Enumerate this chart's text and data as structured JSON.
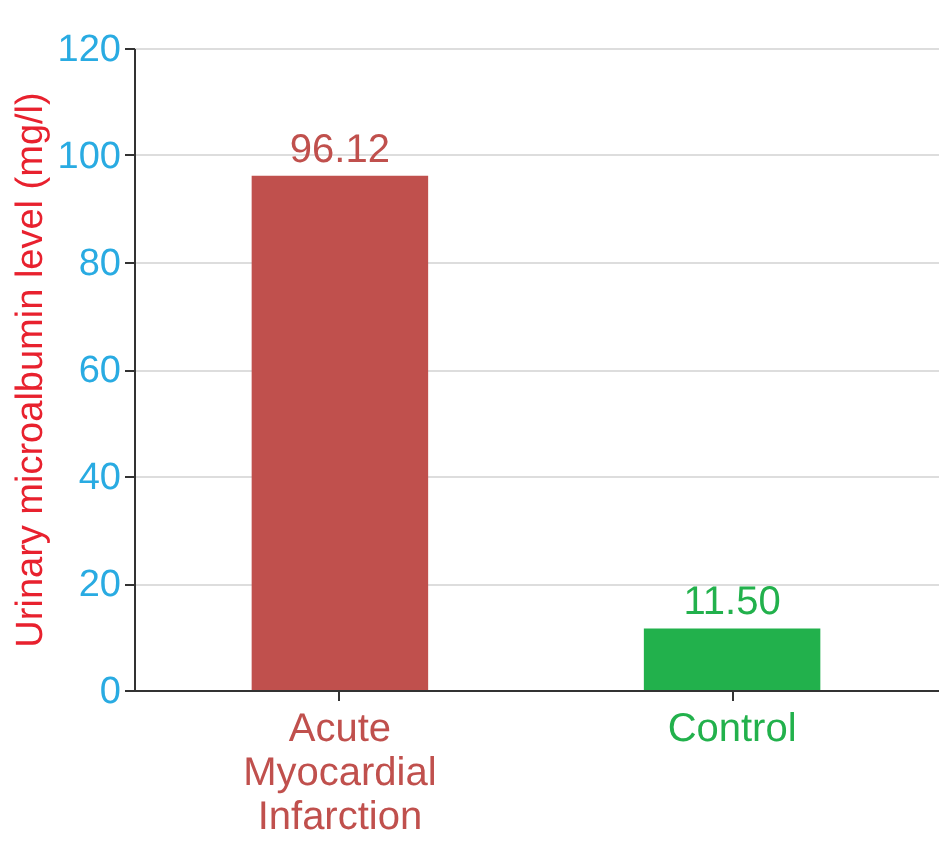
{
  "chart_data": {
    "type": "bar",
    "ylabel": "Urinary microalbumin  level (mg/l)",
    "categories": [
      "Acute Myocardial Infarction",
      "Control"
    ],
    "values": [
      96.12,
      11.5
    ],
    "value_labels": [
      "96.12",
      "11.50"
    ],
    "colors": [
      "#c0504d",
      "#22b14c"
    ],
    "ylim": [
      0,
      120
    ],
    "yticks": [
      0,
      20,
      40,
      60,
      80,
      100,
      120
    ],
    "grid": "y"
  }
}
